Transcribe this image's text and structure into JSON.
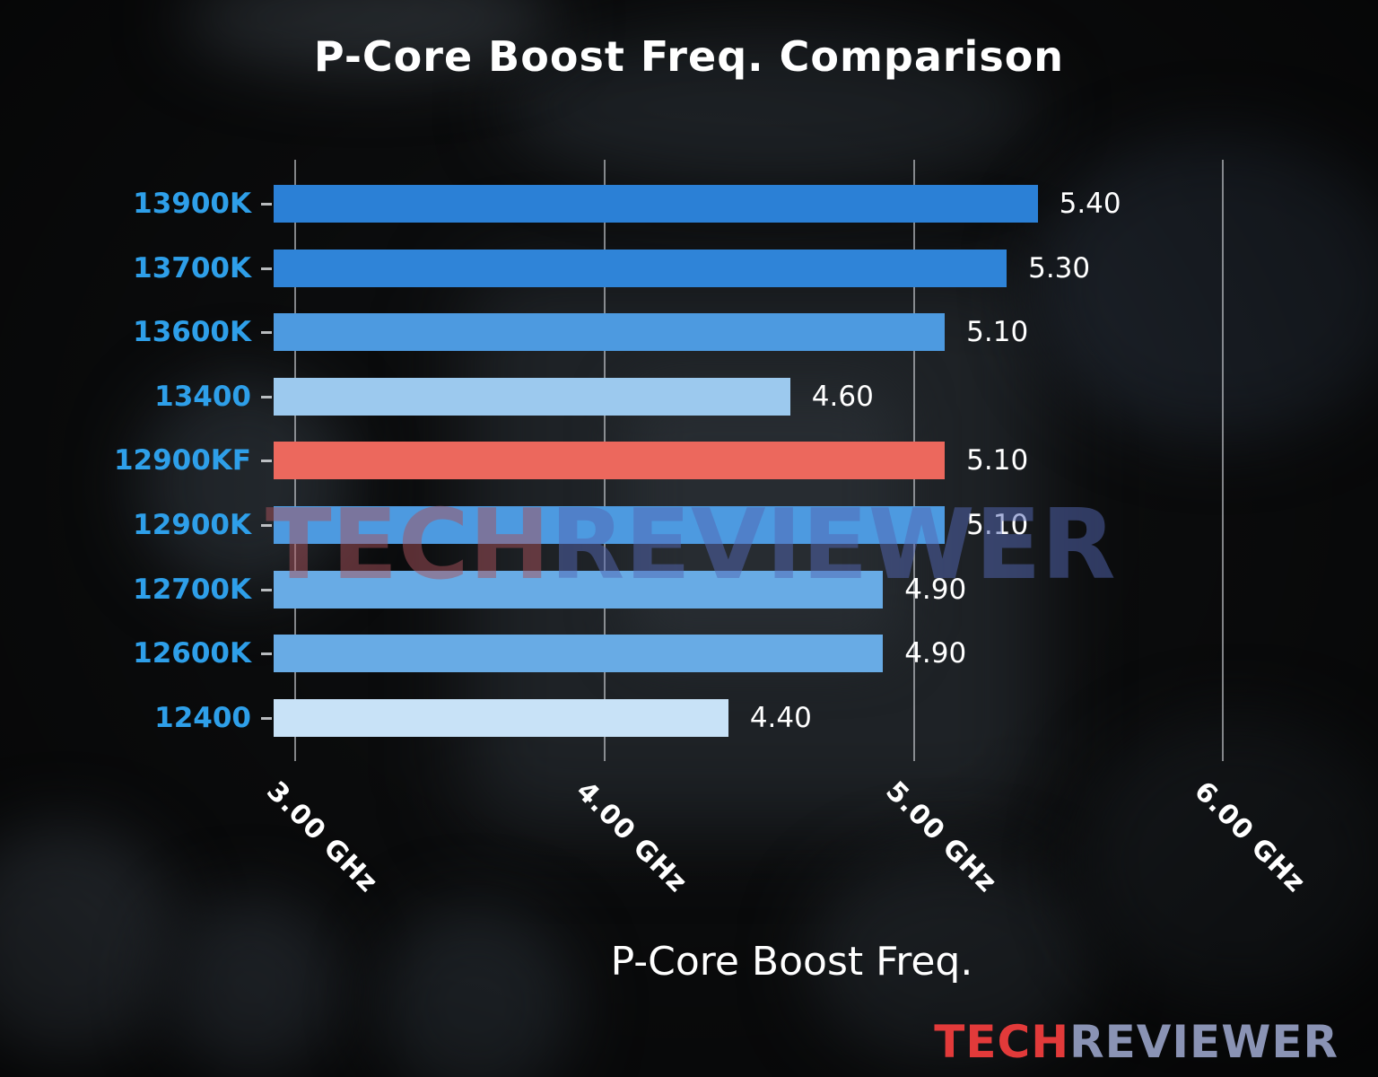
{
  "chart_data": {
    "type": "bar",
    "orientation": "horizontal",
    "title": "P-Core Boost Freq. Comparison",
    "xlabel": "P-Core Boost Freq.",
    "ylabel": "",
    "categories": [
      "13900K",
      "13700K",
      "13600K",
      "13400",
      "12900KF",
      "12900K",
      "12700K",
      "12600K",
      "12400"
    ],
    "values": [
      5.4,
      5.3,
      5.1,
      4.6,
      5.1,
      5.1,
      4.9,
      4.9,
      4.4
    ],
    "value_labels": [
      "5.40",
      "5.30",
      "5.10",
      "4.60",
      "5.10",
      "5.10",
      "4.90",
      "4.90",
      "4.40"
    ],
    "units": "GHz",
    "x_min": 2.93,
    "x_max": 6.28,
    "x_ticks": [
      3.0,
      4.0,
      5.0,
      6.0
    ],
    "x_tick_labels": [
      "3.00 GHz",
      "4.00 GHz",
      "5.00 GHz",
      "6.00 GHz"
    ],
    "grid": true,
    "legend": false,
    "highlight_index": 4,
    "bar_colors": [
      "#2b80d6",
      "#2f84d8",
      "#4d9ae0",
      "#9cc9ee",
      "#ec685d",
      "#4d9ae0",
      "#68abe5",
      "#68abe5",
      "#c8e2f7"
    ],
    "category_label_color": "#2e9fe9",
    "value_label_color": "#ffffff",
    "grid_color": "#d2d6da"
  },
  "watermark": {
    "text_left": "TECH",
    "text_right": "REVIEWER",
    "color_left": "#a8525c",
    "color_right": "#5468b4"
  },
  "logo": {
    "text_left": "TECH",
    "text_right": "REVIEWER",
    "color_left": "#e23a3a",
    "color_right": "#8a93b4"
  }
}
